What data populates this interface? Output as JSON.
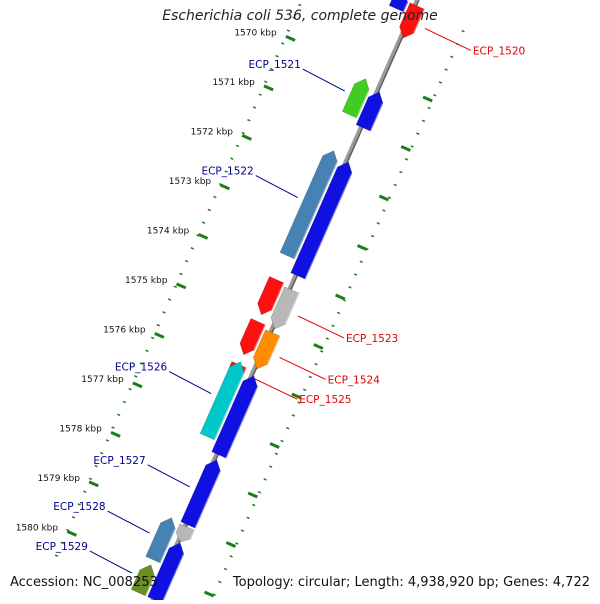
{
  "title": "Escherichia coli 536, complete genome",
  "footer": {
    "accession": "Accession: NC_008253",
    "summary": "Topology: circular; Length: 4,938,920 bp; Genes: 4,722"
  },
  "colors": {
    "backbone": "#808080",
    "ruler_dots": "#1a7f1a",
    "label_left": "#00008b",
    "label_right": "#e00000"
  },
  "ticks": [
    "1570 kbp",
    "1571 kbp",
    "1572 kbp",
    "1573 kbp",
    "1574 kbp",
    "1575 kbp",
    "1576 kbp",
    "1577 kbp",
    "1578 kbp",
    "1579 kbp",
    "1580 kbp"
  ],
  "genes": [
    {
      "label": "",
      "color": "#1010e0",
      "strand": "forward",
      "start": 0.0,
      "end": 1.6,
      "side": "none",
      "lane": "left"
    },
    {
      "label": "ECP_1520",
      "color": "#ff1010",
      "strand": "reverse",
      "start": 0.6,
      "end": 3.8,
      "side": "right",
      "lane": "right"
    },
    {
      "label": "ECP_1521",
      "color": "#40cc20",
      "strand": "forward",
      "start": 8.6,
      "end": 12.2,
      "side": "left",
      "lane": "left"
    },
    {
      "label": "",
      "color": "#1010e0",
      "strand": "forward",
      "start": 9.2,
      "end": 12.8,
      "side": "none",
      "lane": "right"
    },
    {
      "label": "ECP_1522",
      "color": "#4682b4",
      "strand": "forward",
      "start": 15.8,
      "end": 26.3,
      "side": "left",
      "lane": "left"
    },
    {
      "label": "",
      "color": "#1010e0",
      "strand": "forward",
      "start": 16.2,
      "end": 27.6,
      "side": "none",
      "lane": "right"
    },
    {
      "label": "",
      "color": "#ff1010",
      "strand": "reverse",
      "start": 28.7,
      "end": 32.2,
      "side": "none",
      "lane": "left"
    },
    {
      "label": "ECP_1523",
      "color": "#b8b8b8",
      "strand": "reverse",
      "start": 29.0,
      "end": 32.9,
      "side": "right",
      "lane": "right"
    },
    {
      "label": "",
      "color": "#ff1010",
      "strand": "reverse",
      "start": 32.9,
      "end": 36.2,
      "side": "none",
      "lane": "left"
    },
    {
      "label": "ECP_1524",
      "color": "#ff8c00",
      "strand": "reverse",
      "start": 33.3,
      "end": 36.9,
      "side": "right",
      "lane": "right"
    },
    {
      "label": "ECP_1525",
      "color": "#ff1010",
      "strand": "reverse",
      "start": 37.2,
      "end": 38.4,
      "side": "right",
      "lane": "left"
    },
    {
      "label": "ECP_1526",
      "color": "#00c8c8",
      "strand": "forward",
      "start": 36.9,
      "end": 44.4,
      "side": "left",
      "lane": "left"
    },
    {
      "label": "",
      "color": "#1010e0",
      "strand": "forward",
      "start": 37.6,
      "end": 45.5,
      "side": "none",
      "lane": "right"
    },
    {
      "label": "ECP_1527",
      "color": "#1010e0",
      "strand": "forward",
      "start": 46.0,
      "end": 52.5,
      "side": "left",
      "lane": "right"
    },
    {
      "label": "ECP_1528",
      "color": "#4682b4",
      "strand": "forward",
      "start": 52.5,
      "end": 56.7,
      "side": "left",
      "lane": "left"
    },
    {
      "label": "",
      "color": "#b8b8b8",
      "strand": "reverse",
      "start": 52.7,
      "end": 54.2,
      "side": "none",
      "lane": "right"
    },
    {
      "label": "",
      "color": "#1010e0",
      "strand": "forward",
      "start": 54.3,
      "end": 60.0,
      "side": "none",
      "lane": "right"
    },
    {
      "label": "ECP_1529",
      "color": "#6b8e23",
      "strand": "forward",
      "start": 57.2,
      "end": 60.0,
      "side": "left",
      "lane": "left"
    }
  ]
}
